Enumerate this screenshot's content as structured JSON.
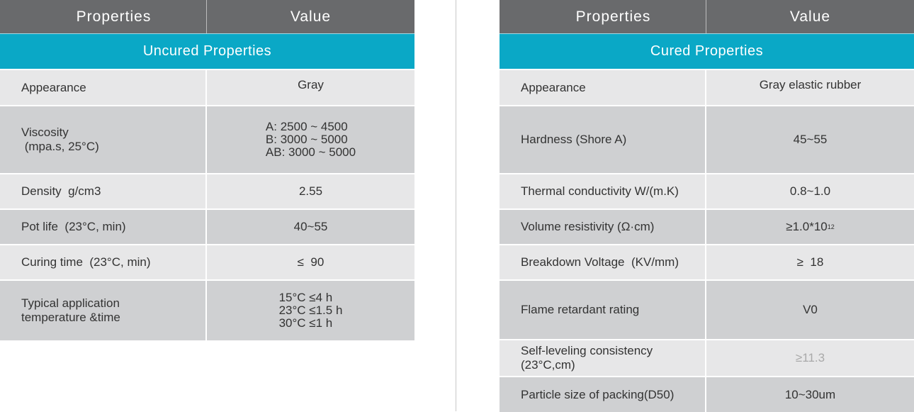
{
  "left": {
    "header": {
      "col1": "Properties",
      "col2": "Value"
    },
    "section": "Uncured Properties",
    "rows": [
      {
        "label": "Appearance",
        "value": "Gray"
      },
      {
        "label_lines": [
          "Viscosity",
          " (mpa.s, 25°C)"
        ],
        "value_lines": [
          "A: 2500 ~ 4500",
          "B: 3000 ~ 5000",
          "AB: 3000 ~ 5000"
        ]
      },
      {
        "label": "Density  g/cm3",
        "value": "2.55"
      },
      {
        "label": "Pot life  (23°C, min)",
        "value": "40~55"
      },
      {
        "label": "Curing time  (23°C, min)",
        "value": "≤  90"
      },
      {
        "label_lines": [
          "Typical application",
          "temperature &time"
        ],
        "value_lines": [
          "15°C ≤4 h",
          "23°C ≤1.5 h",
          "30°C ≤1 h"
        ]
      }
    ]
  },
  "right": {
    "header": {
      "col1": "Properties",
      "col2": "Value"
    },
    "section": "Cured Properties",
    "rows": [
      {
        "label": "Appearance",
        "value": "Gray elastic rubber"
      },
      {
        "label": "Hardness (Shore A)",
        "value": "45~55"
      },
      {
        "label": "Thermal conductivity W/(m.K)",
        "value": "0.8~1.0"
      },
      {
        "label": "Volume resistivity (Ω·cm)",
        "value": "≥1.0*10",
        "value_sup": "12"
      },
      {
        "label": "Breakdown Voltage  (KV/mm)",
        "value": "≥  18"
      },
      {
        "label": "Flame retardant rating",
        "value": "V0"
      },
      {
        "label_lines": [
          "Self-leveling consistency",
          "(23°C,cm)"
        ],
        "value": "≥11.3"
      },
      {
        "label": "Particle size of packing(D50)",
        "value": "10~30um"
      }
    ]
  }
}
